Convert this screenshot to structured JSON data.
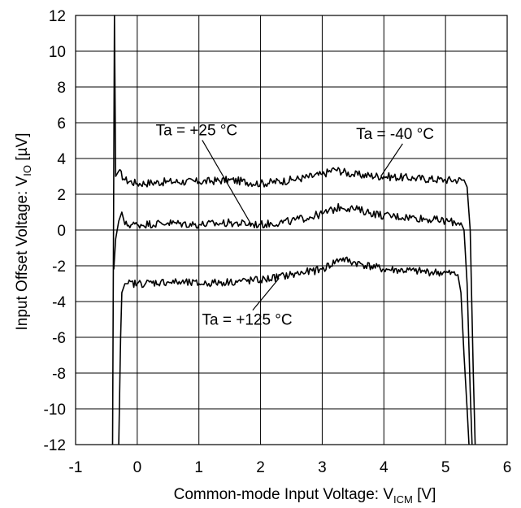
{
  "chart_data": {
    "type": "line",
    "xlabel": "Common-mode Input Voltage:  V",
    "xlabel_sub": "ICM",
    "xlabel_unit": " [V]",
    "ylabel": "Input Offset Voltage:  V",
    "ylabel_sub": "IO",
    "ylabel_unit": " [µV]",
    "xlim": [
      -1,
      6
    ],
    "ylim": [
      -12,
      12
    ],
    "x_ticks": [
      -1,
      0,
      1,
      2,
      3,
      4,
      5,
      6
    ],
    "y_ticks": [
      -12,
      -10,
      -8,
      -6,
      -4,
      -2,
      0,
      2,
      4,
      6,
      8,
      10,
      12
    ],
    "grid": true,
    "series": [
      {
        "name": "Ta = -40 °C",
        "color": "#000000",
        "x": [
          -0.4,
          -0.37,
          -0.35,
          -0.3,
          -0.2,
          0,
          0.5,
          1,
          1.5,
          2,
          2.5,
          3,
          3.2,
          3.5,
          4,
          4.5,
          5,
          5.3,
          5.35,
          5.4,
          5.45,
          5.48
        ],
        "y": [
          -12,
          12,
          3.0,
          3.3,
          2.8,
          2.6,
          2.7,
          2.7,
          2.8,
          2.6,
          2.8,
          3.1,
          3.4,
          3.1,
          3.0,
          2.9,
          2.8,
          2.8,
          2.4,
          0,
          -8,
          -12
        ]
      },
      {
        "name": "Ta = +25 °C",
        "color": "#000000",
        "x": [
          -0.38,
          -0.35,
          -0.3,
          -0.25,
          -0.2,
          0,
          0.5,
          1,
          1.5,
          2,
          2.5,
          3,
          3.3,
          3.5,
          4,
          4.5,
          5,
          5.25,
          5.3,
          5.35,
          5.4,
          5.43
        ],
        "y": [
          -2.2,
          -0.5,
          0.5,
          1.0,
          0.3,
          0.3,
          0.4,
          0.3,
          0.4,
          0.3,
          0.5,
          0.9,
          1.3,
          1.2,
          0.8,
          0.7,
          0.5,
          0.4,
          0,
          -3,
          -9,
          -12
        ]
      },
      {
        "name": "Ta = +125 °C",
        "color": "#000000",
        "x": [
          -0.3,
          -0.27,
          -0.25,
          -0.2,
          -0.15,
          0,
          0.5,
          1,
          1.5,
          2,
          2.5,
          3,
          3.3,
          3.5,
          4,
          4.5,
          5,
          5.2,
          5.25,
          5.3,
          5.35,
          5.38
        ],
        "y": [
          -12,
          -6,
          -3.5,
          -3.0,
          -3.0,
          -3.0,
          -2.9,
          -3.0,
          -2.9,
          -2.8,
          -2.5,
          -2.2,
          -1.6,
          -1.8,
          -2.2,
          -2.3,
          -2.4,
          -2.5,
          -3.5,
          -7,
          -10,
          -12
        ]
      }
    ],
    "annotations": [
      {
        "text": "Ta = +25 °C",
        "x": 0.3,
        "y": 5.3,
        "arrow_to": [
          1.85,
          0.3
        ]
      },
      {
        "text": "Ta = -40 °C",
        "x": 3.55,
        "y": 5.1,
        "arrow_to": [
          3.95,
          3.0
        ]
      },
      {
        "text": "Ta = +125 °C",
        "x": 1.05,
        "y": -5.3,
        "arrow_to": [
          2.3,
          -2.7
        ]
      }
    ]
  }
}
